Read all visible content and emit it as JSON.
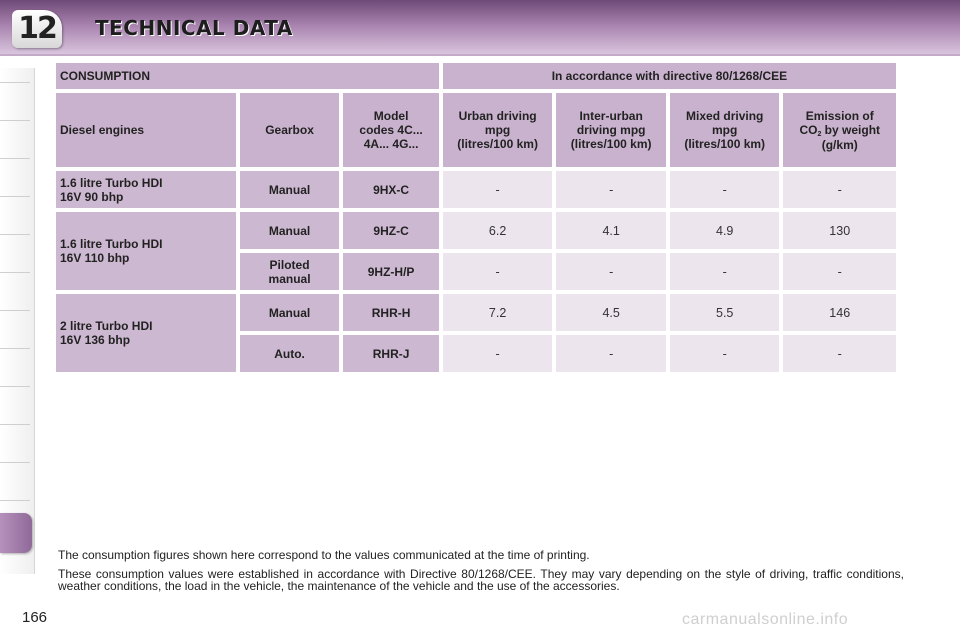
{
  "header": {
    "chapter": "12",
    "title": "TECHNICAL DATA"
  },
  "table": {
    "section_label": "CONSUMPTION",
    "directive_label": "In accordance with directive 80/1268/CEE",
    "columns": {
      "engine": "Diesel engines",
      "gearbox": "Gearbox",
      "model": [
        "Model",
        "codes  4C...",
        "4A... 4G..."
      ],
      "urban": [
        "Urban driving",
        "mpg",
        "(litres/100 km)"
      ],
      "inter": [
        "Inter-urban",
        "driving mpg",
        "(litres/100 km)"
      ],
      "mixed": [
        "Mixed driving",
        "mpg",
        "(litres/100 km)"
      ],
      "emission_a": "Emission of",
      "emission_co": "CO",
      "emission_sub": "2",
      "emission_b": " by weight",
      "emission_c": "(g/km)"
    },
    "engines": [
      {
        "name": [
          "1.6 litre Turbo HDI",
          "16V 90 bhp"
        ]
      },
      {
        "name": [
          "1.6 litre Turbo HDI",
          "16V 110 bhp"
        ]
      },
      {
        "name": [
          "2 litre Turbo HDI",
          "16V 136 bhp"
        ]
      }
    ],
    "rows": [
      {
        "gearbox": [
          "Manual"
        ],
        "model": "9HX-C",
        "urban": "-",
        "inter": "-",
        "mixed": "-",
        "co2": "-"
      },
      {
        "gearbox": [
          "Manual"
        ],
        "model": "9HZ-C",
        "urban": "6.2",
        "inter": "4.1",
        "mixed": "4.9",
        "co2": "130"
      },
      {
        "gearbox": [
          "Piloted",
          "manual"
        ],
        "model": "9HZ-H/P",
        "urban": "-",
        "inter": "-",
        "mixed": "-",
        "co2": "-"
      },
      {
        "gearbox": [
          "Manual"
        ],
        "model": "RHR-H",
        "urban": "7.2",
        "inter": "4.5",
        "mixed": "5.5",
        "co2": "146"
      },
      {
        "gearbox": [
          "Auto."
        ],
        "model": "RHR-J",
        "urban": "-",
        "inter": "-",
        "mixed": "-",
        "co2": "-"
      }
    ]
  },
  "notes": [
    "The consumption figures shown here correspond to the values communicated at the time of printing.",
    "These consumption values were established in accordance with Directive 80/1268/CEE. They may vary depending on the style of driving, traffic conditions, weather conditions, the load in the vehicle, the maintenance of the vehicle and the use of the accessories."
  ],
  "page_number": "166",
  "watermark": "carmanualsonline.info",
  "colors": {
    "header_purple": "#a781ad",
    "header_cell": "#c9b2cd",
    "row_cell": "#cdb8d1",
    "value_cell": "#ece5ee"
  }
}
